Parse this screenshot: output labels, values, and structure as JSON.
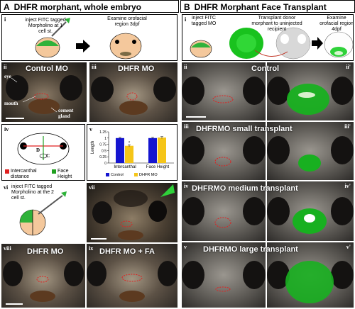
{
  "sections": {
    "A": {
      "letter": "A",
      "title": "DHFR morphant, whole embryo"
    },
    "B": {
      "letter": "B",
      "title": "DHFR Morphant Face Transplant"
    }
  },
  "panels": {
    "Ai": {
      "num": "i",
      "text_inject": "inject FITC tagged Morpholino at 1 cell st.",
      "text_examine": "Examine orofacial region 3dpf"
    },
    "Aii": {
      "num": "ii",
      "title": "Control MO",
      "lbl_eye": "eye",
      "lbl_mouth": "mouth",
      "lbl_cement": "cement gland"
    },
    "Aiii": {
      "num": "iii",
      "title": "DHFR MO"
    },
    "Aiv": {
      "num": "iv",
      "lbl_d": "D",
      "lbl_c": "C",
      "legend_intercanthal": "Intercanthal distance",
      "legend_face": "Face Height"
    },
    "Av": {
      "num": "v",
      "star": "*"
    },
    "Avi": {
      "num": "vi",
      "text_inject": "inject FITC tagged Morpholino at the 2 cell st."
    },
    "Avii": {
      "num": "vii"
    },
    "Aviii": {
      "num": "viii",
      "title": "DHFR MO"
    },
    "Aix": {
      "num": "ix",
      "title": "DHFR MO + FA"
    },
    "Bi": {
      "num": "i",
      "text_inject": "inject FITC tagged MO",
      "text_transplant": "Transplant donor morphant to uninjected recipient",
      "text_examine": "Examine orofacial region 4dpf"
    },
    "Bii": {
      "num": "ii",
      "num2": "ii'",
      "title": "Control"
    },
    "Biii": {
      "num": "iii",
      "num2": "iii'",
      "title": "DHFRMO small transplant"
    },
    "Biv": {
      "num": "iv",
      "num2": "iv'",
      "title": "DHFRMO medium transplant"
    },
    "Bv": {
      "num": "v",
      "num2": "v'",
      "title": "DHFRMO large transplant"
    }
  },
  "chart_data": {
    "type": "bar",
    "categories": [
      "Intercanthal",
      "Face Height"
    ],
    "series": [
      {
        "name": "Control",
        "values": [
          1.0,
          1.0
        ],
        "errors": [
          0.03,
          0.03
        ],
        "color": "#1515d0"
      },
      {
        "name": "DHFR MO",
        "values": [
          0.69,
          1.02
        ],
        "errors": [
          0.04,
          0.04
        ],
        "color": "#f5c518"
      }
    ],
    "ylabel": "Length",
    "ylim": [
      0,
      1.25
    ],
    "yticks": [
      "0",
      "0.25",
      "0.5",
      "0.75",
      "1",
      "1.25"
    ],
    "legend_position": "bottom"
  }
}
